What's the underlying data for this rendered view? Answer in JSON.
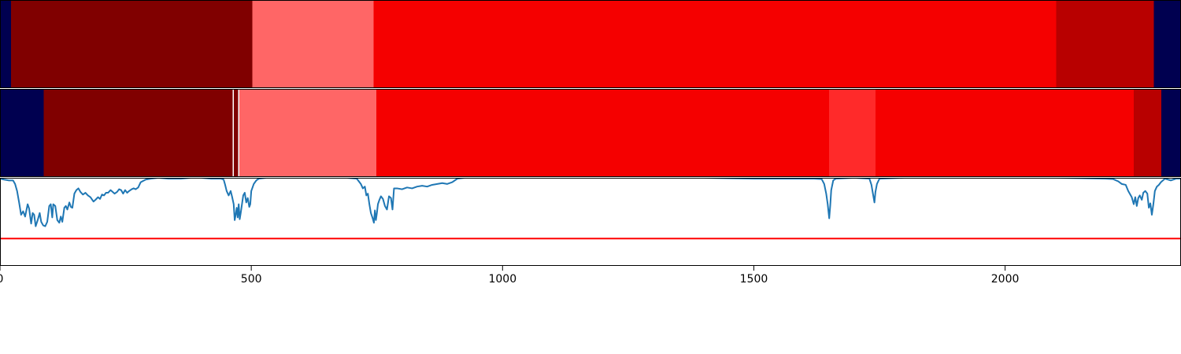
{
  "chart_data": [
    {
      "type": "heatmap",
      "xlim": [
        0,
        2350
      ],
      "segments": [
        {
          "start": 0,
          "end": 22,
          "color": "#000050"
        },
        {
          "start": 22,
          "end": 502,
          "color": "#800000"
        },
        {
          "start": 502,
          "end": 743,
          "color": "#ff6666"
        },
        {
          "start": 743,
          "end": 2102,
          "color": "#f50000"
        },
        {
          "start": 2102,
          "end": 2296,
          "color": "#b80000"
        },
        {
          "start": 2296,
          "end": 2350,
          "color": "#000050"
        }
      ]
    },
    {
      "type": "heatmap",
      "xlim": [
        0,
        2350
      ],
      "segments": [
        {
          "start": 0,
          "end": 87,
          "color": "#000050"
        },
        {
          "start": 87,
          "end": 463,
          "color": "#800000"
        },
        {
          "start": 463,
          "end": 465,
          "color": "#ffffff"
        },
        {
          "start": 465,
          "end": 474,
          "color": "#800000"
        },
        {
          "start": 474,
          "end": 476,
          "color": "#ffffff"
        },
        {
          "start": 476,
          "end": 749,
          "color": "#ff6666"
        },
        {
          "start": 749,
          "end": 1650,
          "color": "#f50000"
        },
        {
          "start": 1650,
          "end": 1742,
          "color": "#ff2a2a"
        },
        {
          "start": 1742,
          "end": 2256,
          "color": "#f50000"
        },
        {
          "start": 2256,
          "end": 2311,
          "color": "#b80000"
        },
        {
          "start": 2311,
          "end": 2350,
          "color": "#000050"
        }
      ]
    },
    {
      "type": "line",
      "xlim": [
        0,
        2350
      ],
      "ylim": [
        0,
        1
      ],
      "x_ticks": [
        0,
        500,
        1000,
        1500,
        2000
      ],
      "x_tick_labels": [
        "0",
        "500",
        "1000",
        "1500",
        "2000"
      ],
      "threshold": {
        "value": 0.31,
        "color": "#ff0000"
      },
      "series": [
        {
          "color": "#1f77b4",
          "points": [
            [
              0,
              0.99
            ],
            [
              8,
              0.98
            ],
            [
              18,
              0.97
            ],
            [
              26,
              0.97
            ],
            [
              30,
              0.93
            ],
            [
              34,
              0.85
            ],
            [
              38,
              0.72
            ],
            [
              42,
              0.58
            ],
            [
              46,
              0.62
            ],
            [
              50,
              0.56
            ],
            [
              55,
              0.7
            ],
            [
              58,
              0.65
            ],
            [
              62,
              0.48
            ],
            [
              65,
              0.6
            ],
            [
              68,
              0.58
            ],
            [
              71,
              0.45
            ],
            [
              75,
              0.52
            ],
            [
              79,
              0.6
            ],
            [
              82,
              0.5
            ],
            [
              86,
              0.46
            ],
            [
              90,
              0.45
            ],
            [
              94,
              0.5
            ],
            [
              98,
              0.68
            ],
            [
              101,
              0.7
            ],
            [
              104,
              0.55
            ],
            [
              106,
              0.7
            ],
            [
              110,
              0.68
            ],
            [
              114,
              0.52
            ],
            [
              118,
              0.49
            ],
            [
              121,
              0.56
            ],
            [
              124,
              0.5
            ],
            [
              128,
              0.66
            ],
            [
              131,
              0.68
            ],
            [
              134,
              0.64
            ],
            [
              138,
              0.72
            ],
            [
              141,
              0.67
            ],
            [
              144,
              0.66
            ],
            [
              148,
              0.82
            ],
            [
              152,
              0.86
            ],
            [
              156,
              0.88
            ],
            [
              160,
              0.84
            ],
            [
              165,
              0.81
            ],
            [
              170,
              0.83
            ],
            [
              175,
              0.8
            ],
            [
              180,
              0.78
            ],
            [
              186,
              0.73
            ],
            [
              190,
              0.75
            ],
            [
              195,
              0.78
            ],
            [
              199,
              0.76
            ],
            [
              203,
              0.81
            ],
            [
              207,
              0.8
            ],
            [
              211,
              0.83
            ],
            [
              215,
              0.83
            ],
            [
              220,
              0.86
            ],
            [
              224,
              0.84
            ],
            [
              228,
              0.82
            ],
            [
              233,
              0.84
            ],
            [
              237,
              0.87
            ],
            [
              241,
              0.86
            ],
            [
              245,
              0.82
            ],
            [
              249,
              0.86
            ],
            [
              253,
              0.83
            ],
            [
              257,
              0.85
            ],
            [
              262,
              0.87
            ],
            [
              266,
              0.88
            ],
            [
              270,
              0.87
            ],
            [
              275,
              0.89
            ],
            [
              280,
              0.95
            ],
            [
              290,
              0.98
            ],
            [
              300,
              0.99
            ],
            [
              315,
              1.0
            ],
            [
              335,
              0.99
            ],
            [
              360,
              0.99
            ],
            [
              380,
              1.0
            ],
            [
              400,
              1.0
            ],
            [
              420,
              0.99
            ],
            [
              440,
              0.99
            ],
            [
              445,
              0.98
            ],
            [
              448,
              0.92
            ],
            [
              451,
              0.85
            ],
            [
              455,
              0.8
            ],
            [
              459,
              0.85
            ],
            [
              462,
              0.78
            ],
            [
              465,
              0.7
            ],
            [
              467,
              0.52
            ],
            [
              469,
              0.58
            ],
            [
              471,
              0.66
            ],
            [
              473,
              0.55
            ],
            [
              475,
              0.7
            ],
            [
              477,
              0.53
            ],
            [
              479,
              0.6
            ],
            [
              481,
              0.68
            ],
            [
              484,
              0.8
            ],
            [
              487,
              0.83
            ],
            [
              490,
              0.72
            ],
            [
              493,
              0.77
            ],
            [
              496,
              0.67
            ],
            [
              498,
              0.7
            ],
            [
              500,
              0.85
            ],
            [
              505,
              0.93
            ],
            [
              510,
              0.97
            ],
            [
              515,
              0.99
            ],
            [
              530,
              1.0
            ],
            [
              560,
              1.0
            ],
            [
              600,
              1.0
            ],
            [
              650,
              1.0
            ],
            [
              690,
              1.0
            ],
            [
              710,
              0.99
            ],
            [
              718,
              0.93
            ],
            [
              722,
              0.88
            ],
            [
              726,
              0.9
            ],
            [
              729,
              0.8
            ],
            [
              732,
              0.82
            ],
            [
              735,
              0.7
            ],
            [
              738,
              0.6
            ],
            [
              741,
              0.55
            ],
            [
              744,
              0.49
            ],
            [
              746,
              0.63
            ],
            [
              748,
              0.52
            ],
            [
              750,
              0.6
            ],
            [
              752,
              0.7
            ],
            [
              755,
              0.75
            ],
            [
              758,
              0.79
            ],
            [
              762,
              0.76
            ],
            [
              766,
              0.68
            ],
            [
              770,
              0.64
            ],
            [
              774,
              0.79
            ],
            [
              778,
              0.77
            ],
            [
              781,
              0.64
            ],
            [
              784,
              0.88
            ],
            [
              790,
              0.88
            ],
            [
              800,
              0.87
            ],
            [
              810,
              0.89
            ],
            [
              820,
              0.88
            ],
            [
              830,
              0.9
            ],
            [
              840,
              0.91
            ],
            [
              850,
              0.9
            ],
            [
              860,
              0.92
            ],
            [
              870,
              0.93
            ],
            [
              880,
              0.94
            ],
            [
              890,
              0.93
            ],
            [
              900,
              0.95
            ],
            [
              910,
              0.99
            ],
            [
              925,
              1.0
            ],
            [
              950,
              1.0
            ],
            [
              1000,
              1.0
            ],
            [
              1100,
              1.0
            ],
            [
              1200,
              1.0
            ],
            [
              1300,
              1.0
            ],
            [
              1400,
              1.0
            ],
            [
              1440,
              0.995
            ],
            [
              1500,
              0.99
            ],
            [
              1560,
              0.99
            ],
            [
              1620,
              0.99
            ],
            [
              1635,
              0.985
            ],
            [
              1640,
              0.93
            ],
            [
              1644,
              0.82
            ],
            [
              1647,
              0.7
            ],
            [
              1650,
              0.54
            ],
            [
              1652,
              0.68
            ],
            [
              1654,
              0.86
            ],
            [
              1658,
              0.97
            ],
            [
              1663,
              0.99
            ],
            [
              1700,
              1.0
            ],
            [
              1730,
              0.99
            ],
            [
              1734,
              0.92
            ],
            [
              1737,
              0.82
            ],
            [
              1740,
              0.72
            ],
            [
              1742,
              0.84
            ],
            [
              1745,
              0.93
            ],
            [
              1750,
              0.99
            ],
            [
              1800,
              1.0
            ],
            [
              1900,
              1.0
            ],
            [
              2000,
              1.0
            ],
            [
              2100,
              1.0
            ],
            [
              2150,
              0.995
            ],
            [
              2200,
              0.99
            ],
            [
              2215,
              0.985
            ],
            [
              2225,
              0.96
            ],
            [
              2232,
              0.93
            ],
            [
              2240,
              0.92
            ],
            [
              2245,
              0.85
            ],
            [
              2248,
              0.82
            ],
            [
              2252,
              0.78
            ],
            [
              2256,
              0.7
            ],
            [
              2259,
              0.78
            ],
            [
              2262,
              0.68
            ],
            [
              2265,
              0.77
            ],
            [
              2268,
              0.8
            ],
            [
              2272,
              0.75
            ],
            [
              2275,
              0.83
            ],
            [
              2279,
              0.85
            ],
            [
              2283,
              0.82
            ],
            [
              2286,
              0.66
            ],
            [
              2289,
              0.71
            ],
            [
              2292,
              0.58
            ],
            [
              2295,
              0.7
            ],
            [
              2298,
              0.85
            ],
            [
              2302,
              0.9
            ],
            [
              2306,
              0.92
            ],
            [
              2310,
              0.95
            ],
            [
              2318,
              0.99
            ],
            [
              2330,
              0.97
            ],
            [
              2340,
              0.99
            ],
            [
              2350,
              0.99
            ]
          ]
        }
      ]
    }
  ]
}
